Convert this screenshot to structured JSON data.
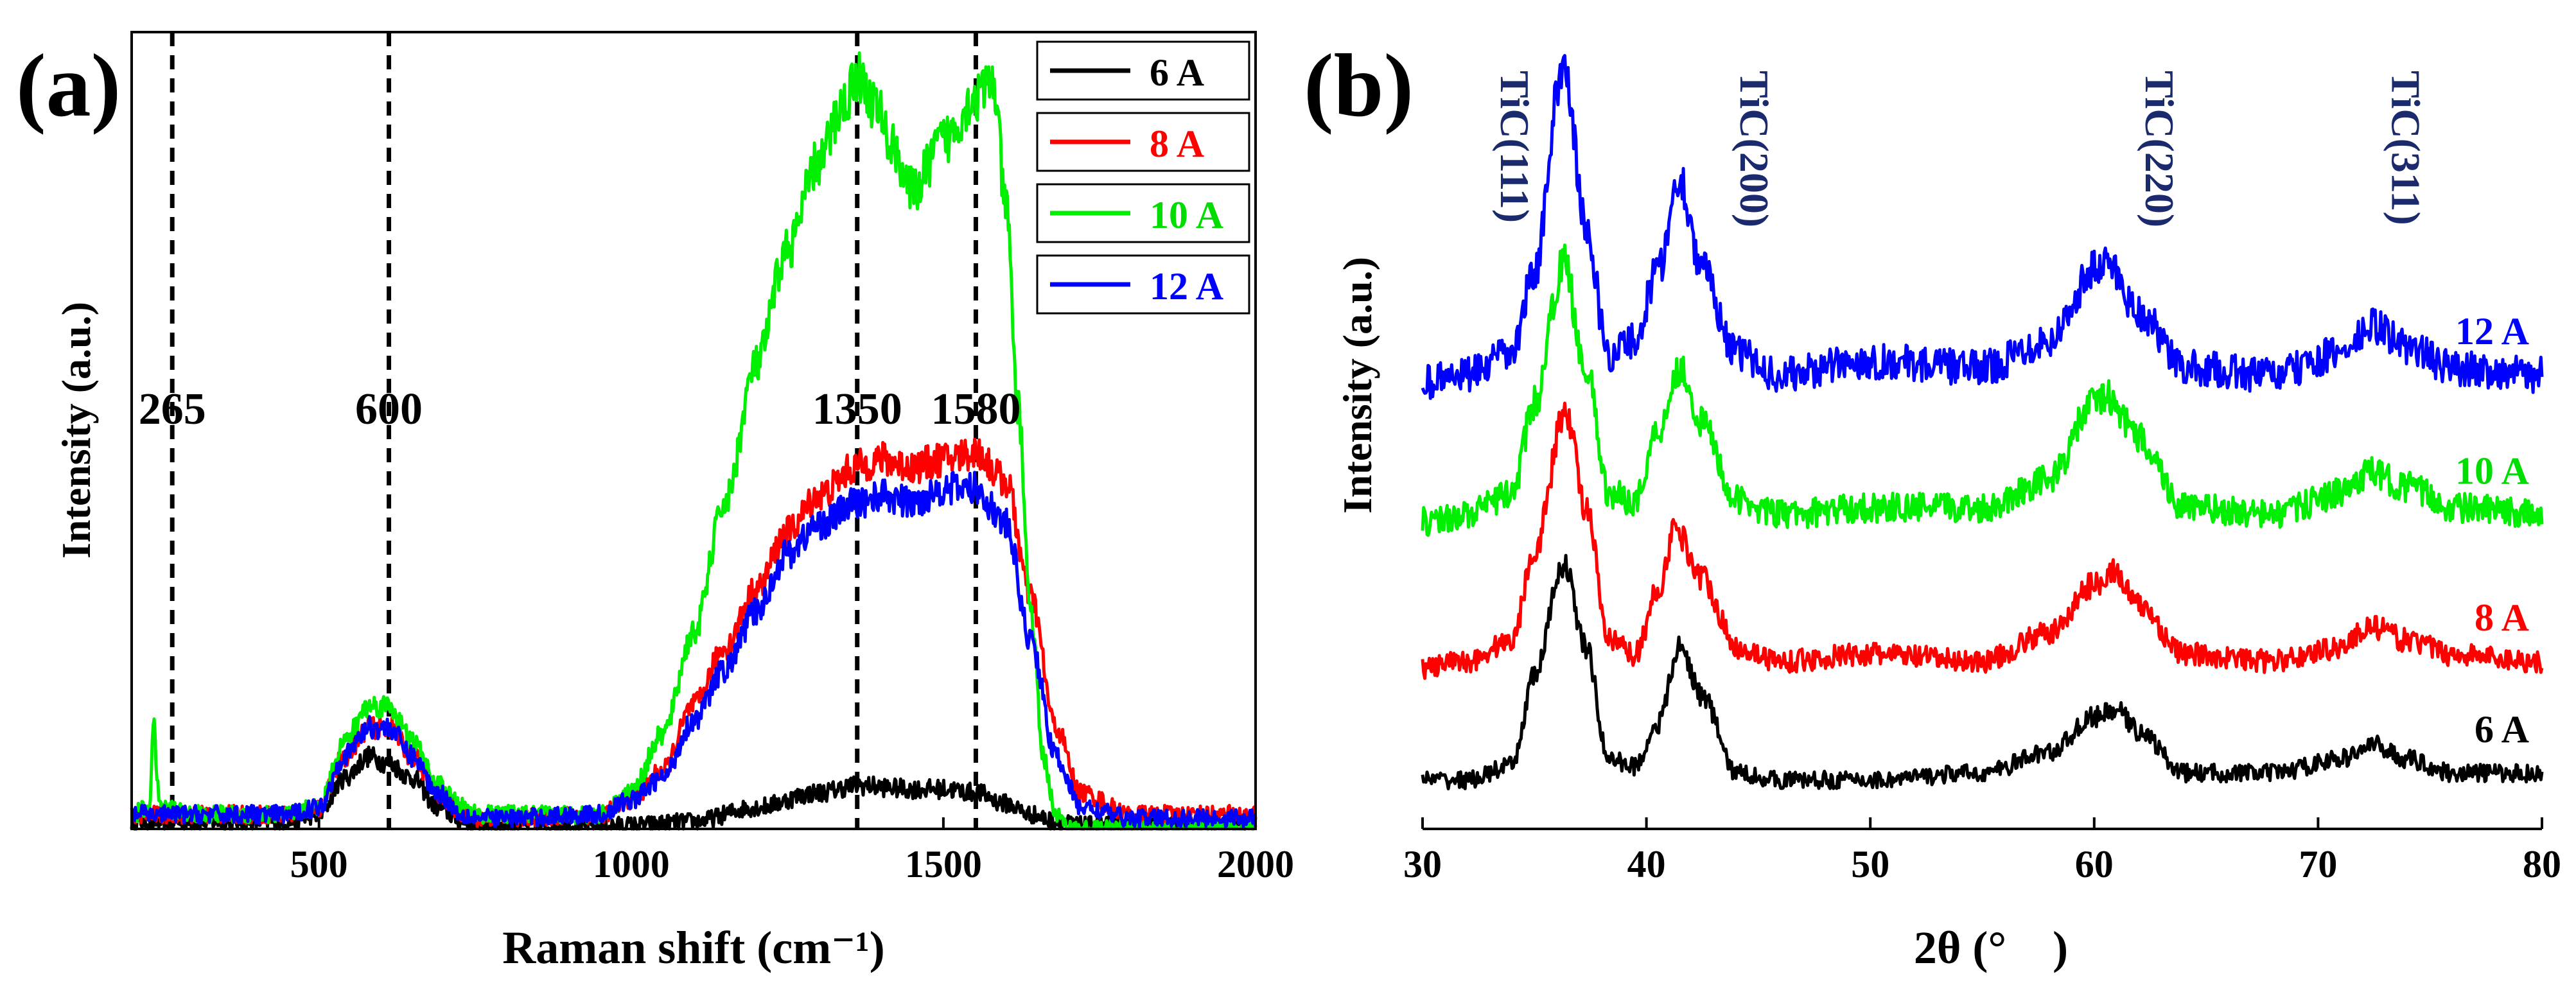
{
  "chart_data": [
    {
      "panel_label": "(a)",
      "type": "line",
      "title": "",
      "xlabel": "Raman shift (cm⁻¹)",
      "ylabel": "Intensity (a.u.)",
      "xlim": [
        200,
        2000
      ],
      "ylim": [
        0,
        110
      ],
      "xticks": [
        500,
        1000,
        1500,
        2000
      ],
      "grid": false,
      "legend": {
        "position": "top-right",
        "entries": [
          "6 A",
          "8 A",
          "10 A",
          "12 A"
        ]
      },
      "reference_lines": [
        {
          "x": 265,
          "label": "265"
        },
        {
          "x": 612,
          "label": "600"
        },
        {
          "x": 1362,
          "label": "1350"
        },
        {
          "x": 1552,
          "label": "1580"
        }
      ],
      "series": [
        {
          "name": "6 A",
          "color": "#000000",
          "x": [
            200,
            450,
            500,
            540,
            580,
            612,
            650,
            690,
            730,
            760,
            800,
            1000,
            1100,
            1200,
            1300,
            1362,
            1450,
            1500,
            1552,
            1600,
            1640,
            1680,
            1720,
            2000
          ],
          "y": [
            1,
            1,
            2,
            7,
            10,
            9,
            7,
            3,
            1,
            0.5,
            0.5,
            0.5,
            1,
            3,
            5,
            6,
            5.5,
            5.5,
            5,
            3.5,
            2,
            1,
            0.5,
            0.5
          ]
        },
        {
          "name": "8 A",
          "color": "#ff0000",
          "x": [
            200,
            450,
            500,
            540,
            580,
            612,
            650,
            690,
            730,
            760,
            800,
            950,
            1000,
            1050,
            1100,
            1150,
            1200,
            1250,
            1300,
            1362,
            1400,
            1450,
            1500,
            1552,
            1600,
            1640,
            1680,
            1720,
            1800,
            2000
          ],
          "y": [
            2,
            2,
            3,
            10,
            14,
            14,
            10,
            5,
            2,
            1.5,
            1.5,
            2,
            4,
            8,
            17,
            25,
            33,
            41,
            46,
            50,
            51,
            50,
            51,
            52,
            48,
            32,
            14,
            5,
            2,
            2
          ]
        },
        {
          "name": "10 A",
          "color": "#00ee00",
          "x": [
            200,
            228,
            235,
            245,
            300,
            450,
            500,
            540,
            580,
            612,
            650,
            690,
            730,
            760,
            800,
            950,
            1000,
            1050,
            1100,
            1150,
            1200,
            1250,
            1300,
            1340,
            1362,
            1390,
            1420,
            1450,
            1500,
            1552,
            1580,
            1600,
            1620,
            1640,
            1660,
            1680,
            1700,
            2000
          ],
          "y": [
            2,
            3,
            14,
            3,
            2,
            2,
            3,
            12,
            17,
            17,
            12,
            6,
            3,
            2,
            2,
            2,
            5,
            13,
            27,
            45,
            64,
            80,
            92,
            100,
            104,
            100,
            94,
            88,
            95,
            101,
            103,
            86,
            58,
            30,
            10,
            2,
            0,
            0
          ]
        },
        {
          "name": "12 A",
          "color": "#0000ff",
          "x": [
            200,
            450,
            500,
            540,
            580,
            612,
            650,
            690,
            730,
            760,
            800,
            950,
            1000,
            1050,
            1100,
            1150,
            1200,
            1250,
            1300,
            1362,
            1400,
            1450,
            1500,
            1552,
            1600,
            1640,
            1680,
            1720,
            1800,
            2000
          ],
          "y": [
            2,
            2,
            3,
            10,
            14,
            14,
            10,
            5,
            2,
            1.5,
            1.5,
            2,
            4,
            7,
            15,
            22,
            30,
            38,
            42,
            45,
            46,
            45,
            47,
            47,
            42,
            26,
            10,
            3,
            1.5,
            1.5
          ]
        }
      ]
    },
    {
      "panel_label": "(b)",
      "type": "line",
      "title": "",
      "xlabel": "2θ (°　)",
      "ylabel": "Intensity (a.u.)",
      "xlim": [
        30,
        80
      ],
      "ylim": [
        0,
        115
      ],
      "xticks": [
        30,
        40,
        50,
        60,
        70,
        80
      ],
      "grid": false,
      "peak_labels": [
        {
          "x": 33.5,
          "label": "TiC(111)"
        },
        {
          "x": 44.2,
          "label": "TiC(200)"
        },
        {
          "x": 62.3,
          "label": "TiC(220)"
        },
        {
          "x": 73.3,
          "label": "TiC(311)"
        }
      ],
      "series": [
        {
          "name": "6 A",
          "color": "#000000",
          "x": [
            30,
            32,
            34,
            35,
            36.3,
            37.3,
            38.3,
            39.5,
            40.5,
            41.5,
            42.5,
            44,
            46,
            50,
            55,
            58,
            60,
            61,
            62,
            64,
            68,
            71,
            72.5,
            74,
            76,
            80
          ],
          "y": [
            7,
            7,
            9,
            22,
            38,
            26,
            10,
            9,
            15,
            26,
            19,
            8,
            7,
            7,
            8,
            11,
            16,
            17,
            14,
            8,
            8,
            10,
            12,
            10,
            8,
            8
          ]
        },
        {
          "name": "8 A",
          "color": "#ff0000",
          "x": [
            30,
            32,
            34,
            35,
            36.4,
            37.3,
            38.3,
            39.5,
            40.5,
            41.3,
            42.5,
            44,
            46,
            50,
            55,
            58,
            60,
            60.8,
            62,
            64,
            68,
            71,
            72.3,
            74,
            76,
            80
          ],
          "y": [
            23,
            24,
            27,
            40,
            60,
            46,
            27,
            25,
            34,
            43,
            36,
            26,
            24,
            25,
            24,
            28,
            35,
            37,
            32,
            25,
            24,
            26,
            29,
            27,
            25,
            24
          ]
        },
        {
          "name": "10 A",
          "color": "#00ee00",
          "x": [
            30,
            32,
            34,
            35,
            36.3,
            37.3,
            38.3,
            39.5,
            40.5,
            41.5,
            42.5,
            44,
            46,
            50,
            55,
            58,
            60,
            60.5,
            62,
            64,
            68,
            71,
            72.3,
            74,
            76,
            80
          ],
          "y": [
            44,
            45,
            48,
            61,
            81,
            66,
            48,
            47,
            57,
            66,
            58,
            47,
            45,
            46,
            46,
            50,
            61,
            62,
            56,
            46,
            45,
            48,
            51,
            49,
            46,
            45
          ]
        },
        {
          "name": "12 A",
          "color": "#0000ff",
          "x": [
            30,
            32,
            34,
            35,
            36.3,
            37.3,
            38.3,
            39.5,
            40.5,
            41.5,
            42.5,
            44,
            46,
            50,
            55,
            58,
            60,
            60.6,
            62,
            64,
            68,
            71,
            72.5,
            74,
            76,
            80
          ],
          "y": [
            64,
            65,
            68,
            80,
            110,
            86,
            68,
            70,
            80,
            93,
            80,
            68,
            65,
            67,
            66,
            70,
            80,
            81,
            74,
            66,
            65,
            68,
            72,
            69,
            66,
            65
          ]
        }
      ],
      "curve_labels": [
        "6 A",
        "8 A",
        "10 A",
        "12 A"
      ]
    }
  ]
}
